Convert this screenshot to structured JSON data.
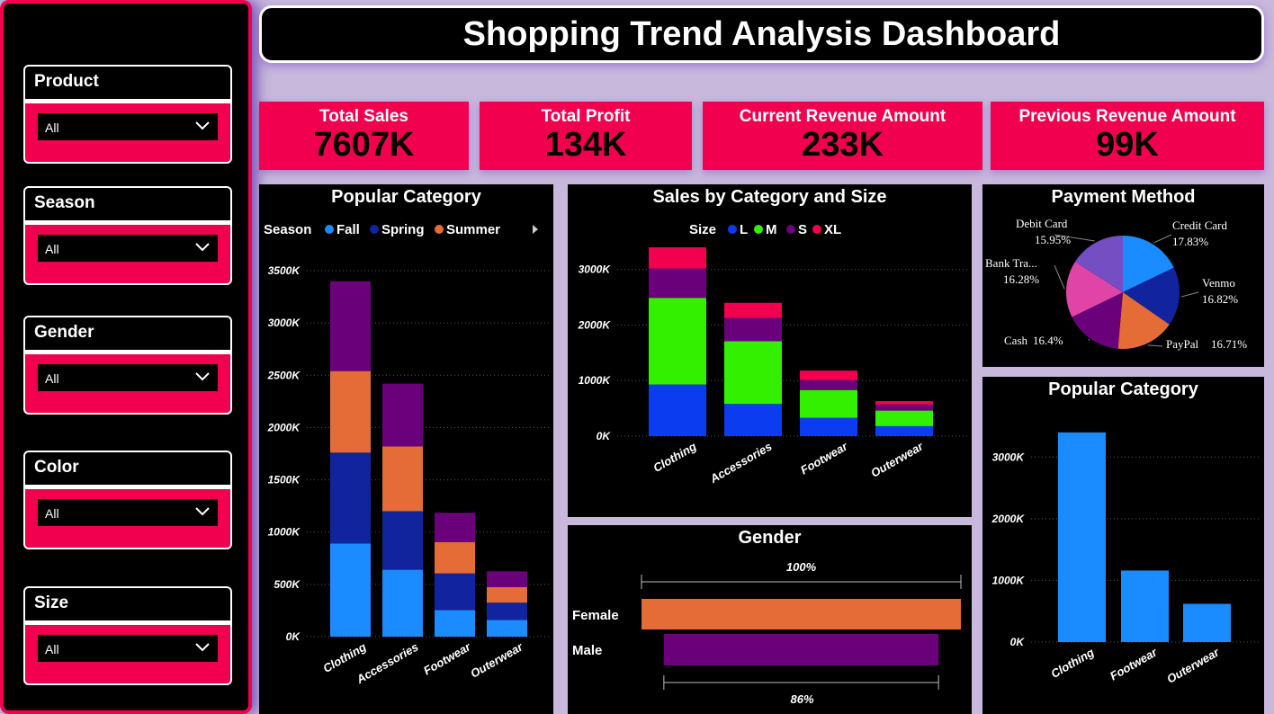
{
  "dashboard": {
    "title": "Shopping Trend Analysis Dashboard"
  },
  "filters": [
    {
      "label": "Product",
      "value": "All"
    },
    {
      "label": "Season",
      "value": "All"
    },
    {
      "label": "Gender",
      "value": "All"
    },
    {
      "label": "Color",
      "value": "All"
    },
    {
      "label": "Size",
      "value": "All"
    }
  ],
  "kpis": [
    {
      "label": "Total Sales",
      "value": "7607K"
    },
    {
      "label": "Total Profit",
      "value": "134K"
    },
    {
      "label": "Current Revenue Amount",
      "value": "233K"
    },
    {
      "label": "Previous Revenue Amount",
      "value": "99K"
    }
  ],
  "colors": {
    "accent": "#f0004f",
    "fall": "#1a8cff",
    "spring": "#12239e",
    "summer": "#e66c37",
    "winter": "#6b007b",
    "size_l": "#0b3cf0",
    "size_m": "#33f000",
    "size_s": "#6b007b",
    "size_xl": "#f0004f",
    "female": "#e66c37",
    "male": "#6b007b",
    "bar": "#1a8cff"
  },
  "chart_data": [
    {
      "id": "popular_category_season",
      "type": "bar",
      "title": "Popular Category",
      "legend_title": "Season",
      "categories": [
        "Clothing",
        "Accessories",
        "Footwear",
        "Outerwear"
      ],
      "series": [
        {
          "name": "Fall",
          "values": [
            890,
            640,
            255,
            160
          ]
        },
        {
          "name": "Spring",
          "values": [
            870,
            560,
            350,
            165
          ]
        },
        {
          "name": "Summer",
          "values": [
            780,
            620,
            300,
            150
          ]
        },
        {
          "name": "",
          "values": [
            860,
            600,
            280,
            150
          ]
        }
      ],
      "yticks": [
        "3500K",
        "3000K",
        "2500K",
        "2000K",
        "1500K",
        "1000K",
        "500K",
        "0K"
      ],
      "ylim": [
        0,
        3500
      ]
    },
    {
      "id": "sales_by_category_size",
      "type": "bar",
      "title": "Sales by Category and Size",
      "legend_title": "Size",
      "categories": [
        "Clothing",
        "Accessories",
        "Footwear",
        "Outerwear"
      ],
      "series": [
        {
          "name": "L",
          "values": [
            930,
            580,
            330,
            180
          ]
        },
        {
          "name": "M",
          "values": [
            1560,
            1130,
            500,
            280
          ]
        },
        {
          "name": "S",
          "values": [
            530,
            420,
            180,
            110
          ]
        },
        {
          "name": "XL",
          "values": [
            380,
            270,
            170,
            60
          ]
        }
      ],
      "yticks": [
        "3000K",
        "2000K",
        "1000K",
        "0K"
      ],
      "ylim": [
        0,
        3400
      ]
    },
    {
      "id": "payment_method",
      "type": "pie",
      "title": "Payment Method",
      "slices": [
        {
          "name": "Credit Card",
          "label": "17.83%",
          "value": 17.83,
          "color": "#1a8cff"
        },
        {
          "name": "Venmo",
          "label": "16.82%",
          "value": 16.82,
          "color": "#12239e"
        },
        {
          "name": "PayPal",
          "label": "16.71%",
          "value": 16.71,
          "color": "#e66c37"
        },
        {
          "name": "Cash",
          "label": "16.4%",
          "value": 16.4,
          "color": "#6b007b"
        },
        {
          "name": "Bank Tra...",
          "label": "16.28%",
          "value": 16.28,
          "color": "#e044a7"
        },
        {
          "name": "Debit Card",
          "label": "15.95%",
          "value": 15.95,
          "color": "#744ec2"
        }
      ]
    },
    {
      "id": "gender",
      "type": "bar",
      "title": "Gender",
      "categories": [
        "Female",
        "Male"
      ],
      "values": [
        100,
        86
      ],
      "value_labels": [
        "100%",
        "86%"
      ]
    },
    {
      "id": "popular_category_simple",
      "type": "bar",
      "title": "Popular Category",
      "categories": [
        "Clothing",
        "Footwear",
        "Outerwear"
      ],
      "values": [
        3400,
        1160,
        620
      ],
      "yticks": [
        "3000K",
        "2000K",
        "1000K",
        "0K"
      ],
      "ylim": [
        0,
        3500
      ]
    }
  ]
}
